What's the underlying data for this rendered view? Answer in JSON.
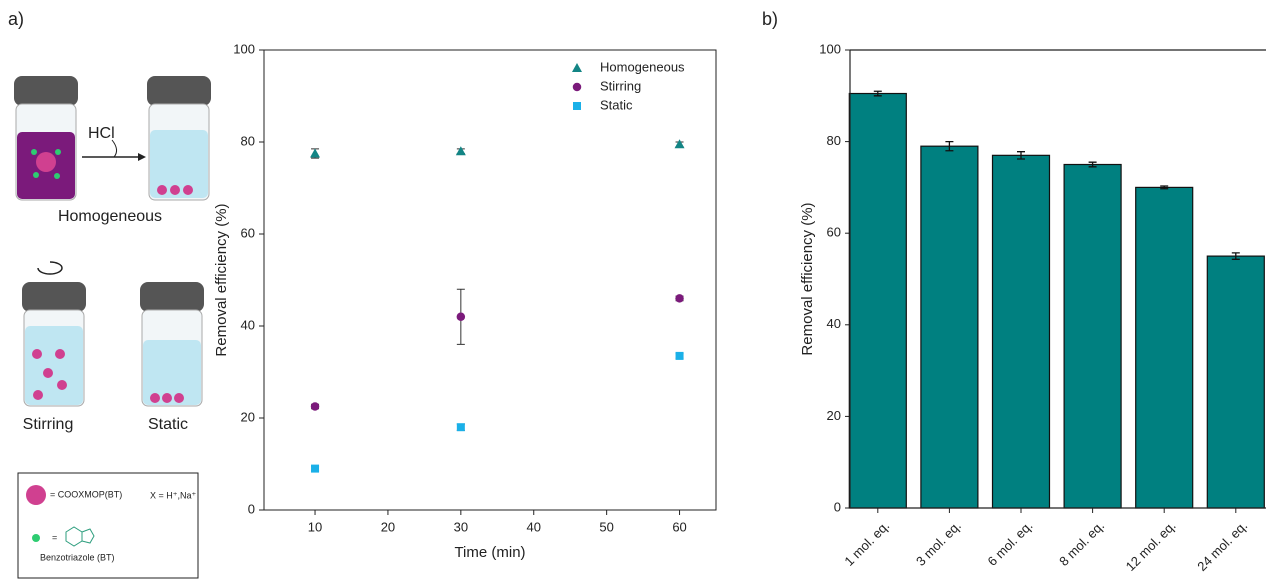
{
  "panel_labels": [
    "a)",
    "b)"
  ],
  "diagram": {
    "reagent": "HCl",
    "vials": [
      "Homogeneous",
      "Stirring",
      "Static"
    ],
    "legend": {
      "mop": "= COOXMOP(BT)",
      "mop_note": "X = H⁺,Na⁺",
      "bt": "=",
      "bt_name": "Benzotriazole (BT)"
    }
  },
  "chart_data": [
    {
      "type": "scatter",
      "xlabel": "Time (min)",
      "ylabel": "Removal efficiency (%)",
      "xlim": [
        3,
        65
      ],
      "xticks": [
        10,
        20,
        30,
        40,
        50,
        60
      ],
      "ylim": [
        0,
        100
      ],
      "yticks": [
        0,
        20,
        40,
        60,
        80,
        100
      ],
      "legend": "upper right",
      "x": [
        10,
        30,
        60
      ],
      "series": [
        {
          "name": "Homogeneous",
          "color": "#138585",
          "marker": "triangle",
          "values": [
            77.5,
            78,
            79.5
          ],
          "errors": [
            1,
            0.5,
            0.5
          ]
        },
        {
          "name": "Stirring",
          "color": "#7b1a7b",
          "marker": "circle",
          "values": [
            22.5,
            42,
            46
          ],
          "errors": [
            0.5,
            6,
            0.5
          ]
        },
        {
          "name": "Static",
          "color": "#1ab0e8",
          "marker": "square",
          "values": [
            9,
            18,
            33.5
          ],
          "errors": [
            0.5,
            0.7,
            0.5
          ]
        }
      ]
    },
    {
      "type": "bar",
      "ylabel": "Removal efficiency (%)",
      "categories": [
        "1 mol. eq.",
        "3 mol. eq.",
        "6 mol. eq.",
        "8 mol. eq.",
        "12 mol. eq.",
        "24 mol. eq."
      ],
      "values": [
        90.5,
        79,
        77,
        75,
        70,
        55
      ],
      "errors": [
        0.5,
        1,
        0.8,
        0.5,
        0.3,
        0.7
      ],
      "color": "#008080",
      "ylim": [
        0,
        100
      ],
      "yticks": [
        0,
        20,
        40,
        60,
        80,
        100
      ]
    }
  ]
}
